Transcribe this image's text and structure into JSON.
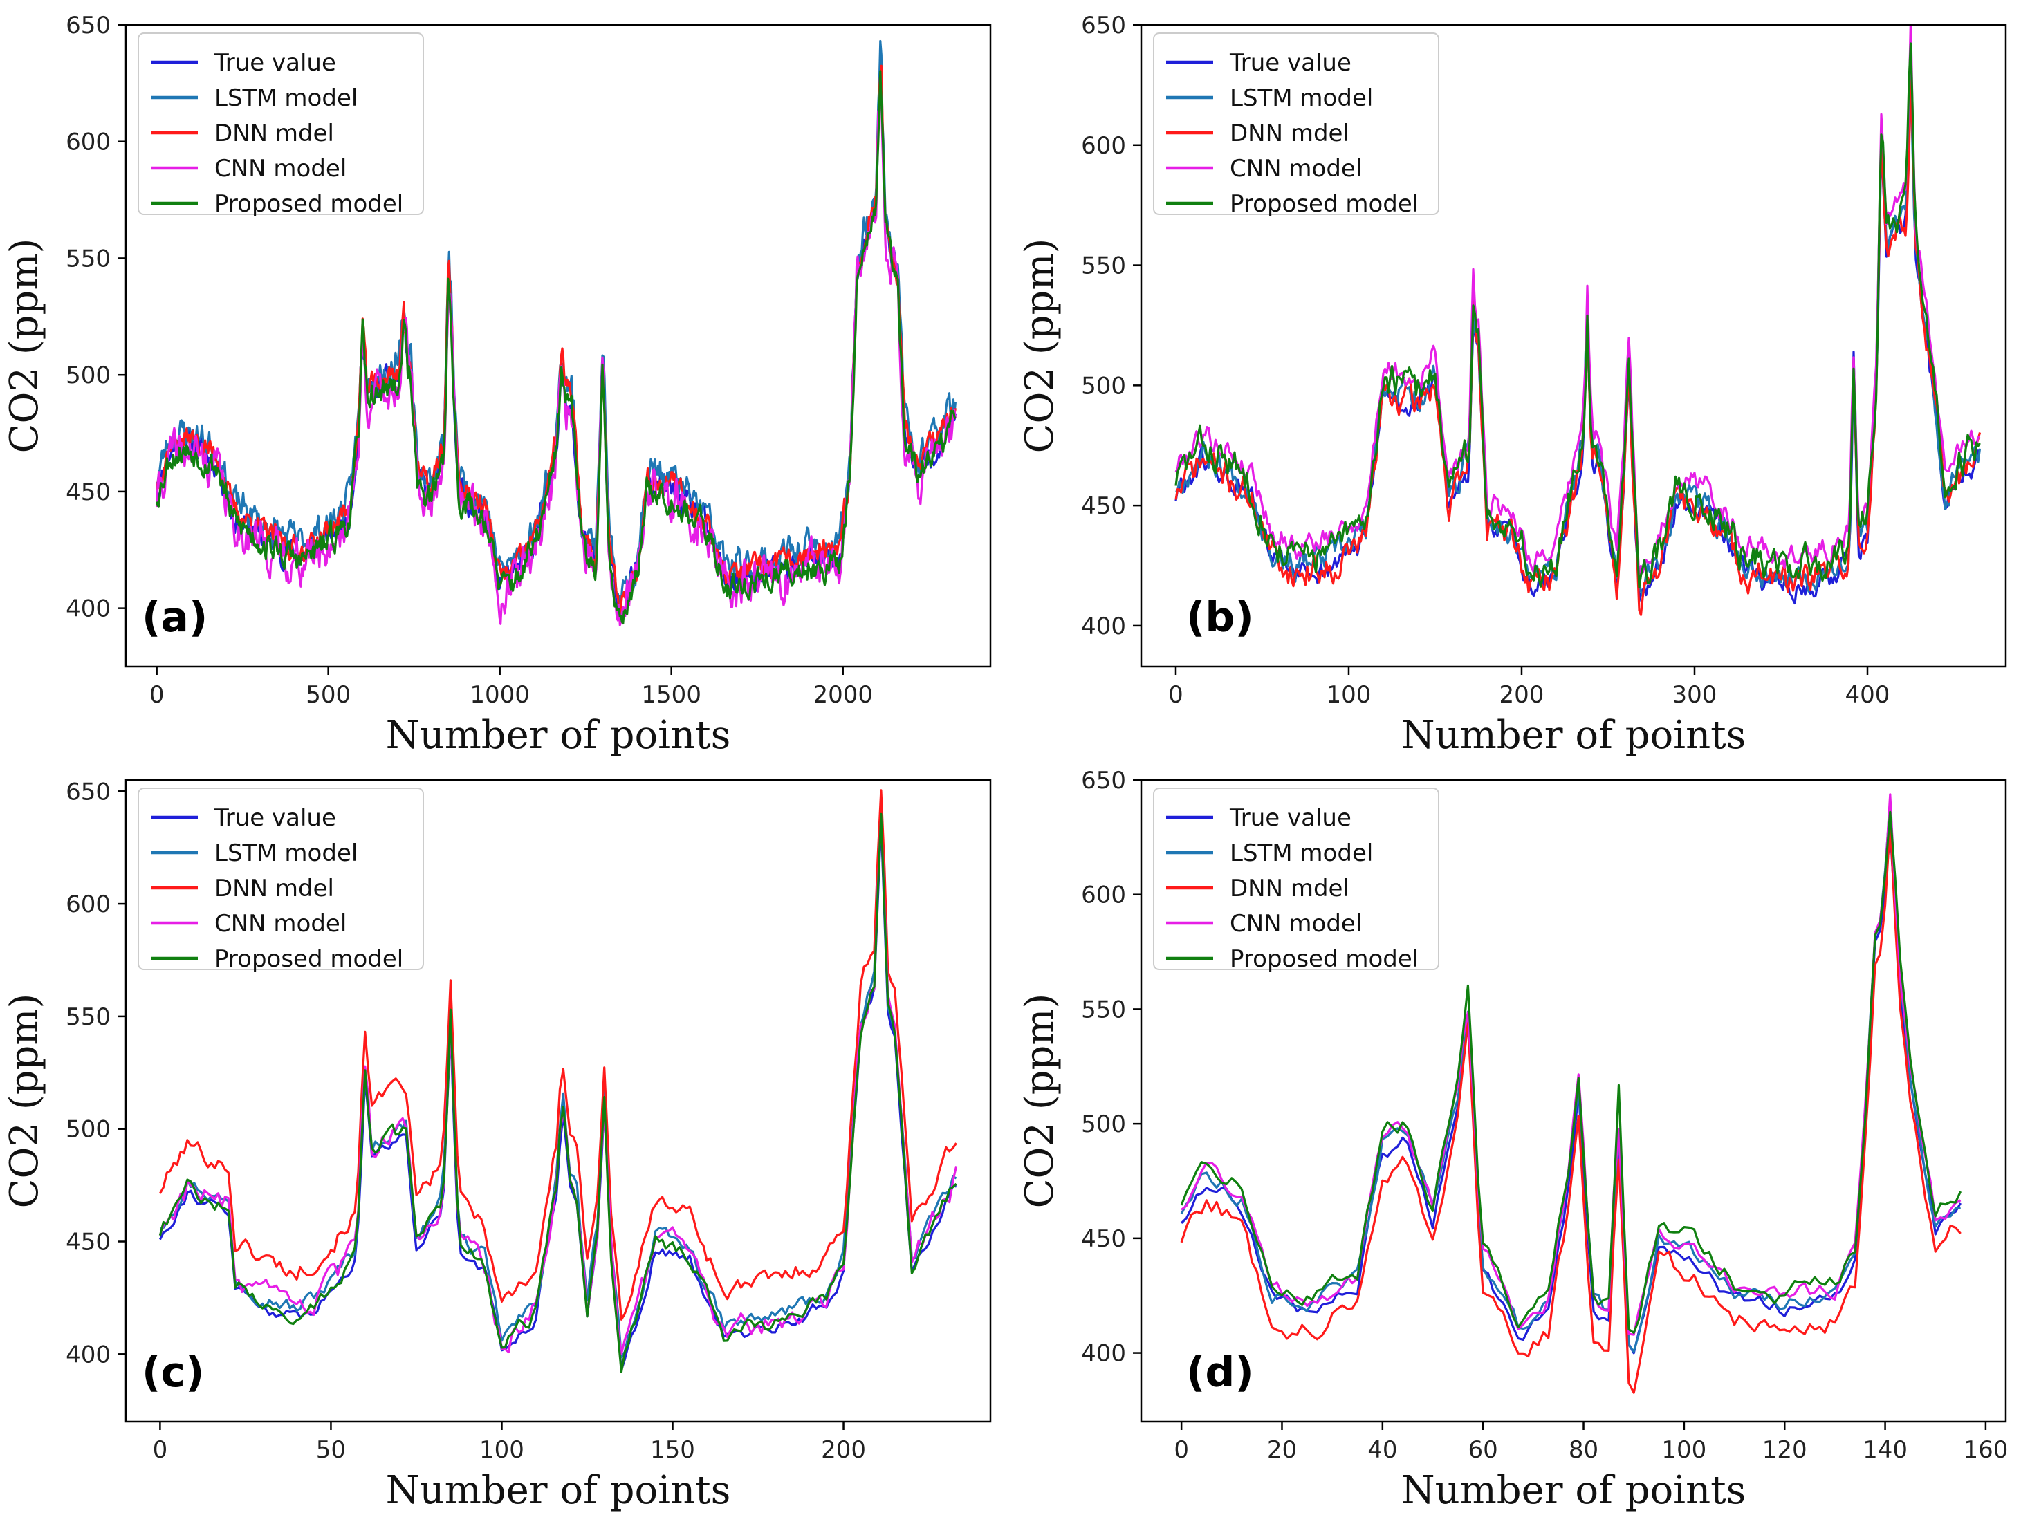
{
  "figure": {
    "series_names": [
      "True value",
      "LSTM model",
      "DNN mdel",
      "CNN model",
      "Proposed model"
    ],
    "series_colors": [
      "#1f1fd9",
      "#1f77b4",
      "#ff1a1a",
      "#e61ee6",
      "#108010"
    ]
  },
  "chart_data": [
    {
      "type": "line",
      "panel_label": "(a)",
      "xlabel": "Number of points",
      "ylabel": "CO2 (ppm)",
      "xlim": [
        -90,
        2430
      ],
      "ylim": [
        375,
        650
      ],
      "xticks": [
        0,
        500,
        1000,
        1500,
        2000
      ],
      "yticks": [
        400,
        450,
        500,
        550,
        600,
        650
      ],
      "legend_position": "top-left",
      "n_points": 2330,
      "profile": [
        [
          0,
          450
        ],
        [
          40,
          468
        ],
        [
          100,
          470
        ],
        [
          180,
          462
        ],
        [
          220,
          440
        ],
        [
          330,
          428
        ],
        [
          420,
          422
        ],
        [
          500,
          430
        ],
        [
          560,
          440
        ],
        [
          600,
          490
        ],
        [
          650,
          495
        ],
        [
          700,
          498
        ],
        [
          740,
          505
        ],
        [
          760,
          455
        ],
        [
          800,
          448
        ],
        [
          840,
          470
        ],
        [
          860,
          510
        ],
        [
          880,
          450
        ],
        [
          960,
          440
        ],
        [
          1000,
          410
        ],
        [
          1050,
          415
        ],
        [
          1100,
          428
        ],
        [
          1150,
          455
        ],
        [
          1180,
          490
        ],
        [
          1210,
          488
        ],
        [
          1240,
          430
        ],
        [
          1280,
          420
        ],
        [
          1300,
          495
        ],
        [
          1320,
          420
        ],
        [
          1350,
          398
        ],
        [
          1400,
          415
        ],
        [
          1430,
          455
        ],
        [
          1500,
          450
        ],
        [
          1600,
          435
        ],
        [
          1660,
          412
        ],
        [
          1700,
          412
        ],
        [
          1800,
          415
        ],
        [
          1900,
          420
        ],
        [
          1990,
          420
        ],
        [
          2020,
          455
        ],
        [
          2040,
          540
        ],
        [
          2070,
          560
        ],
        [
          2100,
          575
        ],
        [
          2130,
          560
        ],
        [
          2160,
          540
        ],
        [
          2180,
          475
        ],
        [
          2220,
          458
        ],
        [
          2270,
          470
        ],
        [
          2320,
          480
        ]
      ],
      "spikes": [
        [
          850,
          545
        ],
        [
          1300,
          508
        ],
        [
          2110,
          640
        ],
        [
          600,
          520
        ],
        [
          720,
          528
        ],
        [
          1180,
          505
        ]
      ],
      "series": [
        {
          "name": "True value",
          "offset": 0,
          "noise": 8,
          "seed": 11
        },
        {
          "name": "LSTM model",
          "offset": 6,
          "noise": 9,
          "seed": 23
        },
        {
          "name": "DNN mdel",
          "offset": 3,
          "noise": 7,
          "seed": 37
        },
        {
          "name": "CNN model",
          "offset": -3,
          "noise": 12,
          "seed": 41
        },
        {
          "name": "Proposed model",
          "offset": -2,
          "noise": 8,
          "seed": 53
        }
      ]
    },
    {
      "type": "line",
      "panel_label": "(b)",
      "xlabel": "Number of points",
      "ylabel": "CO2 (ppm)",
      "xlim": [
        -20,
        480
      ],
      "ylim": [
        383,
        650
      ],
      "xticks": [
        0,
        100,
        200,
        300,
        400
      ],
      "yticks": [
        400,
        450,
        500,
        550,
        600,
        650
      ],
      "legend_position": "top-left",
      "n_points": 466,
      "profile": [
        [
          0,
          458
        ],
        [
          15,
          472
        ],
        [
          30,
          465
        ],
        [
          45,
          455
        ],
        [
          55,
          432
        ],
        [
          70,
          425
        ],
        [
          90,
          428
        ],
        [
          110,
          440
        ],
        [
          120,
          500
        ],
        [
          140,
          495
        ],
        [
          150,
          505
        ],
        [
          158,
          450
        ],
        [
          170,
          470
        ],
        [
          175,
          520
        ],
        [
          180,
          445
        ],
        [
          195,
          440
        ],
        [
          205,
          420
        ],
        [
          220,
          425
        ],
        [
          235,
          475
        ],
        [
          245,
          470
        ],
        [
          255,
          420
        ],
        [
          262,
          500
        ],
        [
          268,
          415
        ],
        [
          280,
          430
        ],
        [
          290,
          455
        ],
        [
          310,
          448
        ],
        [
          330,
          425
        ],
        [
          360,
          420
        ],
        [
          380,
          425
        ],
        [
          400,
          440
        ],
        [
          410,
          560
        ],
        [
          425,
          575
        ],
        [
          435,
          520
        ],
        [
          445,
          455
        ],
        [
          460,
          470
        ],
        [
          466,
          475
        ]
      ],
      "spikes": [
        [
          172,
          535
        ],
        [
          238,
          530
        ],
        [
          262,
          512
        ],
        [
          392,
          515
        ],
        [
          425,
          635
        ],
        [
          408,
          605
        ]
      ],
      "series": [
        {
          "name": "True value",
          "offset": -4,
          "noise": 7,
          "seed": 61
        },
        {
          "name": "LSTM model",
          "offset": 0,
          "noise": 8,
          "seed": 67
        },
        {
          "name": "DNN mdel",
          "offset": -3,
          "noise": 9,
          "seed": 71
        },
        {
          "name": "CNN model",
          "offset": 8,
          "noise": 7,
          "seed": 79
        },
        {
          "name": "Proposed model",
          "offset": 3,
          "noise": 10,
          "seed": 83
        }
      ]
    },
    {
      "type": "line",
      "panel_label": "(c)",
      "xlabel": "Number of points",
      "ylabel": "CO2 (ppm)",
      "xlim": [
        -10,
        243
      ],
      "ylim": [
        370,
        655
      ],
      "xticks": [
        0,
        50,
        100,
        150,
        200
      ],
      "yticks": [
        400,
        450,
        500,
        550,
        600,
        650
      ],
      "legend_position": "top-left",
      "n_points": 234,
      "profile": [
        [
          0,
          455
        ],
        [
          8,
          475
        ],
        [
          20,
          465
        ],
        [
          22,
          432
        ],
        [
          30,
          425
        ],
        [
          40,
          418
        ],
        [
          50,
          430
        ],
        [
          57,
          445
        ],
        [
          60,
          490
        ],
        [
          65,
          495
        ],
        [
          72,
          500
        ],
        [
          75,
          450
        ],
        [
          82,
          465
        ],
        [
          85,
          500
        ],
        [
          88,
          450
        ],
        [
          95,
          440
        ],
        [
          100,
          405
        ],
        [
          110,
          420
        ],
        [
          117,
          485
        ],
        [
          122,
          470
        ],
        [
          125,
          420
        ],
        [
          130,
          480
        ],
        [
          135,
          398
        ],
        [
          140,
          420
        ],
        [
          145,
          450
        ],
        [
          155,
          445
        ],
        [
          165,
          410
        ],
        [
          180,
          415
        ],
        [
          195,
          425
        ],
        [
          200,
          440
        ],
        [
          205,
          545
        ],
        [
          210,
          570
        ],
        [
          215,
          545
        ],
        [
          220,
          440
        ],
        [
          230,
          470
        ],
        [
          233,
          478
        ]
      ],
      "spikes": [
        [
          85,
          550
        ],
        [
          130,
          515
        ],
        [
          211,
          640
        ],
        [
          60,
          530
        ],
        [
          118,
          512
        ]
      ],
      "series": [
        {
          "name": "True value",
          "offset": -3,
          "noise": 4,
          "seed": 91
        },
        {
          "name": "LSTM model",
          "offset": 2,
          "noise": 5,
          "seed": 97
        },
        {
          "name": "DNN mdel",
          "offset": 18,
          "noise": 6,
          "seed": 101
        },
        {
          "name": "CNN model",
          "offset": 0,
          "noise": 8,
          "seed": 103
        },
        {
          "name": "Proposed model",
          "offset": -1,
          "noise": 5,
          "seed": 107
        }
      ]
    },
    {
      "type": "line",
      "panel_label": "(d)",
      "xlabel": "Number of points",
      "ylabel": "CO2 (ppm)",
      "xlim": [
        -8,
        164
      ],
      "ylim": [
        370,
        650
      ],
      "xticks": [
        0,
        20,
        40,
        60,
        80,
        100,
        120,
        140,
        160
      ],
      "yticks": [
        400,
        450,
        500,
        550,
        600,
        650
      ],
      "legend_position": "top-left",
      "n_points": 156,
      "profile": [
        [
          0,
          460
        ],
        [
          5,
          478
        ],
        [
          12,
          465
        ],
        [
          18,
          425
        ],
        [
          25,
          420
        ],
        [
          35,
          430
        ],
        [
          40,
          490
        ],
        [
          45,
          495
        ],
        [
          50,
          460
        ],
        [
          57,
          530
        ],
        [
          60,
          440
        ],
        [
          67,
          410
        ],
        [
          73,
          420
        ],
        [
          79,
          500
        ],
        [
          82,
          420
        ],
        [
          87,
          410
        ],
        [
          90,
          400
        ],
        [
          95,
          450
        ],
        [
          100,
          445
        ],
        [
          110,
          425
        ],
        [
          120,
          420
        ],
        [
          130,
          425
        ],
        [
          134,
          440
        ],
        [
          138,
          560
        ],
        [
          141,
          605
        ],
        [
          145,
          520
        ],
        [
          150,
          455
        ],
        [
          155,
          465
        ]
      ],
      "spikes": [
        [
          57,
          548
        ],
        [
          79,
          515
        ],
        [
          87,
          505
        ],
        [
          141,
          635
        ],
        [
          138,
          580
        ]
      ],
      "series": [
        {
          "name": "True value",
          "offset": -2,
          "noise": 5,
          "seed": 109
        },
        {
          "name": "LSTM model",
          "offset": 2,
          "noise": 5,
          "seed": 113
        },
        {
          "name": "DNN mdel",
          "offset": -10,
          "noise": 7,
          "seed": 127
        },
        {
          "name": "CNN model",
          "offset": 4,
          "noise": 6,
          "seed": 131
        },
        {
          "name": "Proposed model",
          "offset": 6,
          "noise": 6,
          "seed": 137
        }
      ]
    }
  ]
}
